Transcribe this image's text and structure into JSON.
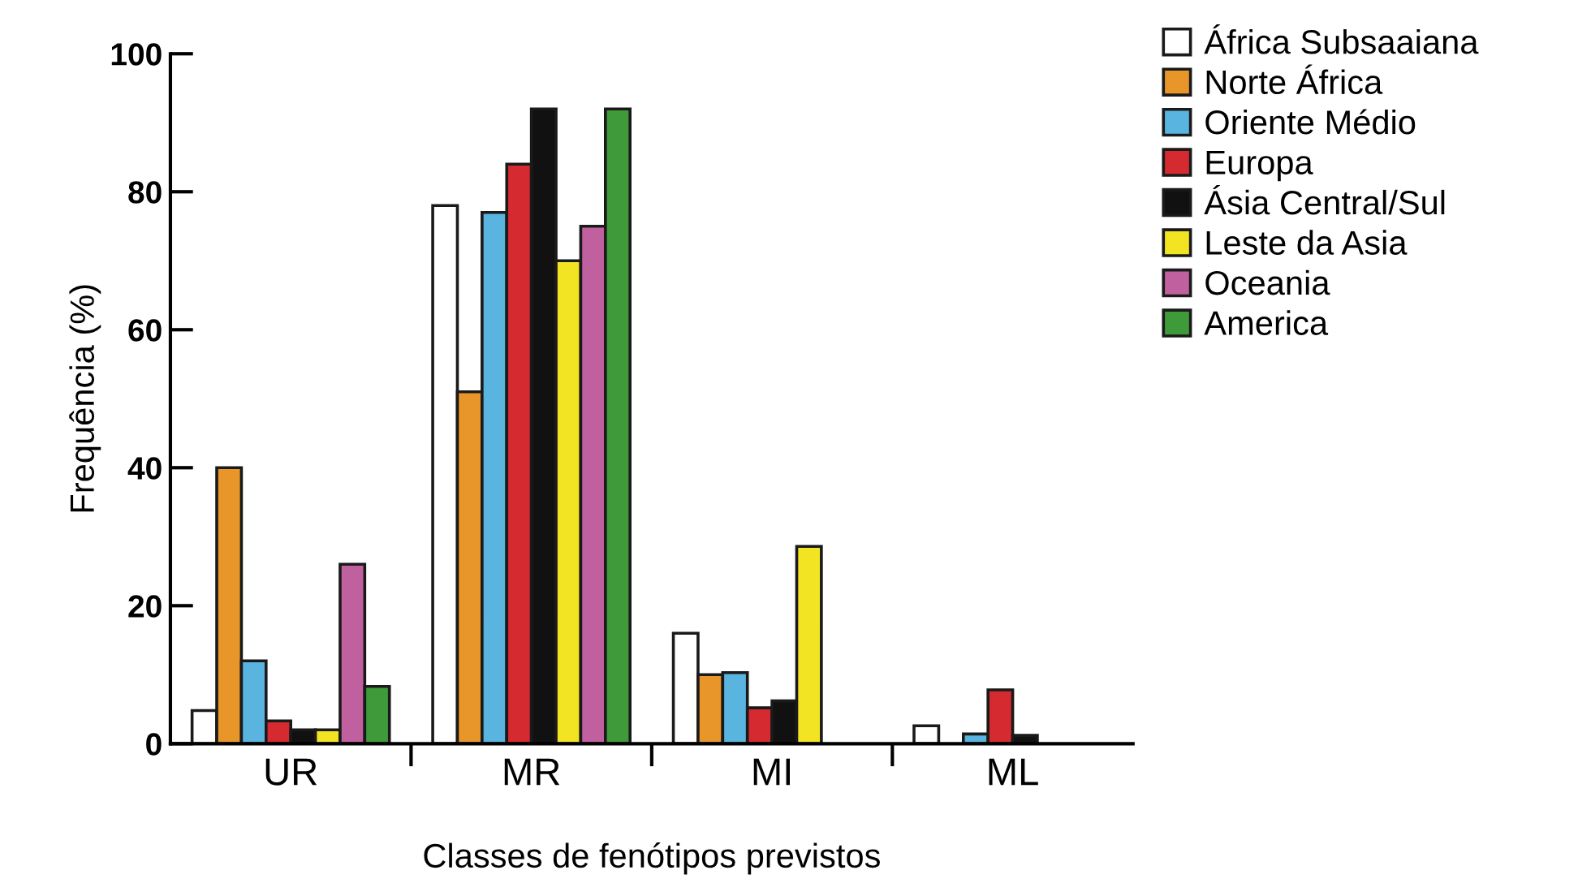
{
  "chart_data": {
    "type": "bar",
    "xlabel": "Classes de fenótipos previstos",
    "ylabel": "Frequência (%)",
    "categories": [
      "UR",
      "MR",
      "MI",
      "ML"
    ],
    "series": [
      {
        "name": "África Subsaaiana",
        "color": "#ffffff",
        "values": [
          4.8,
          78,
          16,
          2.6
        ]
      },
      {
        "name": "Norte África",
        "color": "#e8962a",
        "values": [
          40,
          51,
          10,
          null
        ]
      },
      {
        "name": "Oriente Médio",
        "color": "#5ab4e0",
        "values": [
          12,
          77,
          10.3,
          1.4
        ]
      },
      {
        "name": "Europa",
        "color": "#d42a30",
        "values": [
          3.3,
          84,
          5.2,
          7.8
        ]
      },
      {
        "name": "Ásia Central/Sul",
        "color": "#111111",
        "values": [
          2,
          92,
          6.2,
          1.2
        ]
      },
      {
        "name": "Leste da Asia",
        "color": "#f2e422",
        "values": [
          2,
          70,
          28.6,
          null
        ]
      },
      {
        "name": "Oceania",
        "color": "#c0609e",
        "values": [
          26,
          75,
          null,
          null
        ]
      },
      {
        "name": "America",
        "color": "#3f9a3a",
        "values": [
          8.3,
          92,
          null,
          null
        ]
      }
    ],
    "ylim": [
      0,
      100
    ],
    "yticks": [
      0,
      20,
      40,
      60,
      80,
      100
    ],
    "grid": false,
    "legend": "top right"
  }
}
